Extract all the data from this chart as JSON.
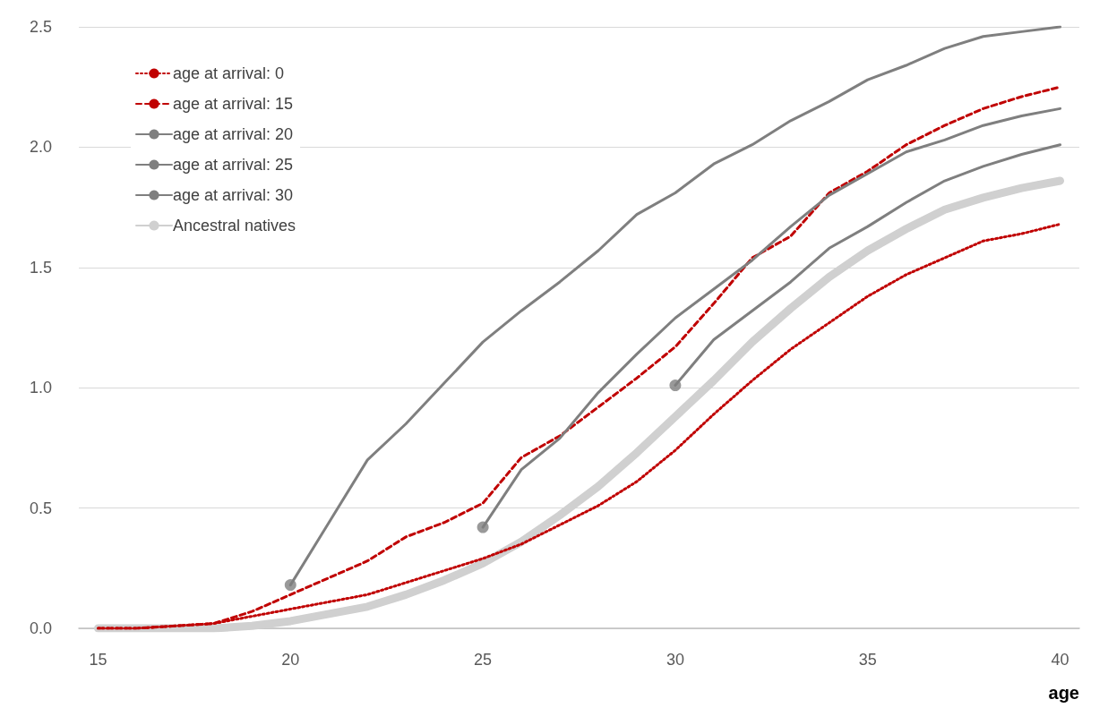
{
  "chart_data": {
    "type": "line",
    "xlabel": "age",
    "xlim": [
      14.5,
      40.5
    ],
    "xticks": [
      15,
      20,
      25,
      30,
      35,
      40
    ],
    "ylim": [
      0,
      2.5
    ],
    "yticks": [
      {
        "value": 0,
        "label": "0.0"
      },
      0.5,
      {
        "value": 1,
        "label": "1.0"
      },
      1.5,
      {
        "value": 2,
        "label": "2.0"
      },
      2.5
    ],
    "grid": "y",
    "legend": "top left",
    "marker": "none",
    "series": [
      {
        "name": "age at arrival: 0",
        "color": "#c00000",
        "line_style": "dotted",
        "x": [
          15,
          16,
          17,
          18,
          19,
          20,
          21,
          22,
          23,
          24,
          25,
          26,
          27,
          28,
          29,
          30,
          31,
          32,
          33,
          34,
          35,
          36,
          37,
          38,
          39,
          40
        ],
        "values": [
          0,
          0,
          0.01,
          0.02,
          0.05,
          0.08,
          0.11,
          0.14,
          0.19,
          0.24,
          0.29,
          0.35,
          0.43,
          0.51,
          0.61,
          0.74,
          0.89,
          1.03,
          1.16,
          1.27,
          1.38,
          1.47,
          1.54,
          1.61,
          1.64,
          1.68
        ]
      },
      {
        "name": "age at arrival: 15",
        "color": "#c00000",
        "line_style": "dashed",
        "x": [
          15,
          16,
          17,
          18,
          19,
          20,
          21,
          22,
          23,
          24,
          25,
          26,
          27,
          28,
          29,
          30,
          31,
          32,
          33,
          34,
          35,
          36,
          37,
          38,
          39,
          40
        ],
        "values": [
          0,
          0,
          0.01,
          0.02,
          0.07,
          0.14,
          0.21,
          0.28,
          0.38,
          0.44,
          0.52,
          0.71,
          0.8,
          0.92,
          1.04,
          1.17,
          1.35,
          1.54,
          1.63,
          1.81,
          1.9,
          2.01,
          2.09,
          2.16,
          2.21,
          2.25
        ]
      },
      {
        "name": "age at arrival: 20",
        "color": "#7f7f7f",
        "line_style": "solid",
        "x": [
          20,
          21,
          22,
          23,
          24,
          25,
          26,
          27,
          28,
          29,
          30,
          31,
          32,
          33,
          34,
          35,
          36,
          37,
          38,
          39,
          40
        ],
        "values": [
          0.18,
          0.44,
          0.7,
          0.85,
          1.02,
          1.19,
          1.32,
          1.44,
          1.57,
          1.72,
          1.81,
          1.93,
          2.01,
          2.11,
          2.19,
          2.28,
          2.34,
          2.41,
          2.46,
          2.48,
          2.5
        ]
      },
      {
        "name": "age at arrival: 25",
        "color": "#7f7f7f",
        "line_style": "solid",
        "x": [
          25,
          26,
          27,
          28,
          29,
          30,
          31,
          32,
          33,
          34,
          35,
          36,
          37,
          38,
          39,
          40
        ],
        "values": [
          0.42,
          0.66,
          0.79,
          0.98,
          1.14,
          1.29,
          1.41,
          1.53,
          1.67,
          1.8,
          1.89,
          1.98,
          2.03,
          2.09,
          2.13,
          2.16
        ]
      },
      {
        "name": "age at arrival: 30",
        "color": "#7f7f7f",
        "line_style": "solid",
        "x": [
          30,
          31,
          32,
          33,
          34,
          35,
          36,
          37,
          38,
          39,
          40
        ],
        "values": [
          1.01,
          1.2,
          1.32,
          1.44,
          1.58,
          1.67,
          1.77,
          1.86,
          1.92,
          1.97,
          2.01
        ]
      },
      {
        "name": "Ancestral natives",
        "color": "#d0d0d0",
        "line_style": "solid",
        "x": [
          15,
          16,
          17,
          18,
          19,
          20,
          21,
          22,
          23,
          24,
          25,
          26,
          27,
          28,
          29,
          30,
          31,
          32,
          33,
          34,
          35,
          36,
          37,
          38,
          39,
          40
        ],
        "values": [
          0,
          0,
          0,
          0,
          0.01,
          0.03,
          0.06,
          0.09,
          0.14,
          0.2,
          0.27,
          0.36,
          0.47,
          0.59,
          0.73,
          0.88,
          1.03,
          1.19,
          1.33,
          1.46,
          1.57,
          1.66,
          1.74,
          1.79,
          1.83,
          1.86
        ]
      },
      {
        "type": "scatter",
        "marker": "circle",
        "color": "#7f7f7f",
        "x": [
          20,
          25,
          30
        ],
        "values": [
          0.18,
          0.42,
          1.01
        ]
      }
    ]
  }
}
